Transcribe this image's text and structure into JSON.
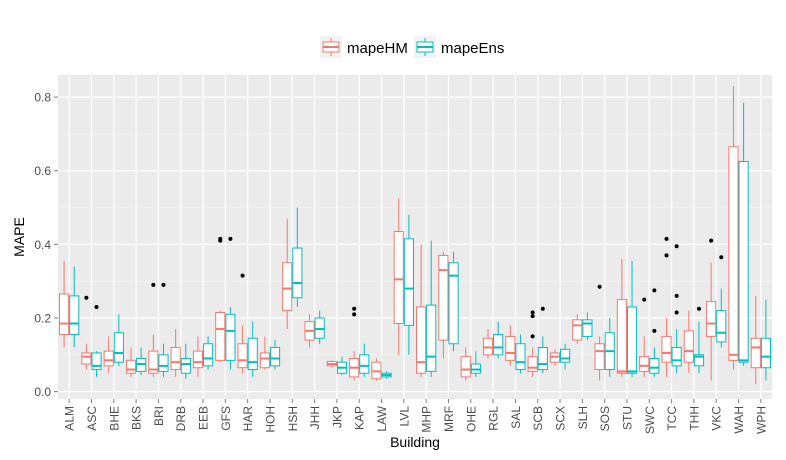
{
  "chart_data": {
    "type": "boxplot",
    "xlabel": "Building",
    "ylabel": "MAPE",
    "ylim": [
      -0.02,
      0.86
    ],
    "yticks": [
      0.0,
      0.2,
      0.4,
      0.6,
      0.8
    ],
    "ytick_labels": [
      "0.0",
      "0.2",
      "0.4",
      "0.6",
      "0.8"
    ],
    "grid": true,
    "legend_position": "top-center",
    "categories": [
      "ALM",
      "ASC",
      "BHE",
      "BKS",
      "BRI",
      "DRB",
      "EEB",
      "GFS",
      "HAR",
      "HOH",
      "HSH",
      "JHH",
      "JKP",
      "KAP",
      "LAW",
      "LVL",
      "MHP",
      "MRF",
      "OHE",
      "RGL",
      "SAL",
      "SCB",
      "SCX",
      "SLH",
      "SOS",
      "STU",
      "SWC",
      "TCC",
      "THH",
      "VKC",
      "WAH",
      "WPH"
    ],
    "series": [
      {
        "name": "mapeHM",
        "color": "#F8766D",
        "boxes": [
          {
            "lw": 0.12,
            "q1": 0.155,
            "med": 0.185,
            "q3": 0.265,
            "uw": 0.355,
            "out": []
          },
          {
            "lw": 0.06,
            "q1": 0.075,
            "med": 0.095,
            "q3": 0.105,
            "uw": 0.13,
            "out": [
              0.255
            ]
          },
          {
            "lw": 0.05,
            "q1": 0.07,
            "med": 0.085,
            "q3": 0.11,
            "uw": 0.15,
            "out": []
          },
          {
            "lw": 0.04,
            "q1": 0.05,
            "med": 0.06,
            "q3": 0.085,
            "uw": 0.12,
            "out": []
          },
          {
            "lw": 0.04,
            "q1": 0.05,
            "med": 0.06,
            "q3": 0.11,
            "uw": 0.155,
            "out": [
              0.29
            ]
          },
          {
            "lw": 0.04,
            "q1": 0.06,
            "med": 0.08,
            "q3": 0.12,
            "uw": 0.17,
            "out": []
          },
          {
            "lw": 0.04,
            "q1": 0.065,
            "med": 0.08,
            "q3": 0.11,
            "uw": 0.15,
            "out": []
          },
          {
            "lw": 0.08,
            "q1": 0.085,
            "med": 0.17,
            "q3": 0.215,
            "uw": 0.22,
            "out": [
              0.41,
              0.415
            ]
          },
          {
            "lw": 0.05,
            "q1": 0.065,
            "med": 0.085,
            "q3": 0.13,
            "uw": 0.18,
            "out": [
              0.315
            ]
          },
          {
            "lw": 0.06,
            "q1": 0.065,
            "med": 0.09,
            "q3": 0.105,
            "uw": 0.15,
            "out": []
          },
          {
            "lw": 0.17,
            "q1": 0.22,
            "med": 0.28,
            "q3": 0.35,
            "uw": 0.47,
            "out": []
          },
          {
            "lw": 0.12,
            "q1": 0.14,
            "med": 0.165,
            "q3": 0.19,
            "uw": 0.21,
            "out": []
          },
          {
            "lw": 0.065,
            "q1": 0.07,
            "med": 0.075,
            "q3": 0.082,
            "uw": 0.085,
            "out": []
          },
          {
            "lw": 0.03,
            "q1": 0.04,
            "med": 0.065,
            "q3": 0.09,
            "uw": 0.11,
            "out": [
              0.21,
              0.225
            ]
          },
          {
            "lw": 0.03,
            "q1": 0.035,
            "med": 0.055,
            "q3": 0.08,
            "uw": 0.09,
            "out": []
          },
          {
            "lw": 0.1,
            "q1": 0.185,
            "med": 0.305,
            "q3": 0.435,
            "uw": 0.525,
            "out": []
          },
          {
            "lw": 0.04,
            "q1": 0.05,
            "med": 0.08,
            "q3": 0.23,
            "uw": 0.4,
            "out": []
          },
          {
            "lw": 0.09,
            "q1": 0.14,
            "med": 0.33,
            "q3": 0.37,
            "uw": 0.38,
            "out": []
          },
          {
            "lw": 0.03,
            "q1": 0.04,
            "med": 0.06,
            "q3": 0.095,
            "uw": 0.12,
            "out": []
          },
          {
            "lw": 0.09,
            "q1": 0.1,
            "med": 0.12,
            "q3": 0.145,
            "uw": 0.17,
            "out": []
          },
          {
            "lw": 0.07,
            "q1": 0.085,
            "med": 0.105,
            "q3": 0.15,
            "uw": 0.18,
            "out": []
          },
          {
            "lw": 0.04,
            "q1": 0.055,
            "med": 0.065,
            "q3": 0.095,
            "uw": 0.12,
            "out": [
              0.15,
              0.205,
              0.215
            ]
          },
          {
            "lw": 0.07,
            "q1": 0.08,
            "med": 0.095,
            "q3": 0.105,
            "uw": 0.115,
            "out": []
          },
          {
            "lw": 0.13,
            "q1": 0.14,
            "med": 0.18,
            "q3": 0.195,
            "uw": 0.21,
            "out": []
          },
          {
            "lw": 0.03,
            "q1": 0.06,
            "med": 0.11,
            "q3": 0.13,
            "uw": 0.15,
            "out": [
              0.285
            ]
          },
          {
            "lw": 0.04,
            "q1": 0.05,
            "med": 0.055,
            "q3": 0.25,
            "uw": 0.36,
            "out": []
          },
          {
            "lw": 0.04,
            "q1": 0.055,
            "med": 0.07,
            "q3": 0.095,
            "uw": 0.15,
            "out": [
              0.25
            ]
          },
          {
            "lw": 0.04,
            "q1": 0.08,
            "med": 0.105,
            "q3": 0.15,
            "uw": 0.2,
            "out": [
              0.37,
              0.415
            ]
          },
          {
            "lw": 0.05,
            "q1": 0.08,
            "med": 0.11,
            "q3": 0.165,
            "uw": 0.22,
            "out": []
          },
          {
            "lw": 0.03,
            "q1": 0.15,
            "med": 0.185,
            "q3": 0.245,
            "uw": 0.35,
            "out": [
              0.41
            ]
          },
          {
            "lw": 0.06,
            "q1": 0.085,
            "med": 0.1,
            "q3": 0.665,
            "uw": 0.83,
            "out": []
          },
          {
            "lw": 0.02,
            "q1": 0.065,
            "med": 0.12,
            "q3": 0.145,
            "uw": 0.26,
            "out": []
          }
        ]
      },
      {
        "name": "mapeEns",
        "color": "#00BFC4",
        "boxes": [
          {
            "lw": 0.12,
            "q1": 0.155,
            "med": 0.185,
            "q3": 0.26,
            "uw": 0.34,
            "out": []
          },
          {
            "lw": 0.04,
            "q1": 0.06,
            "med": 0.07,
            "q3": 0.105,
            "uw": 0.11,
            "out": [
              0.23
            ]
          },
          {
            "lw": 0.07,
            "q1": 0.08,
            "med": 0.105,
            "q3": 0.16,
            "uw": 0.21,
            "out": []
          },
          {
            "lw": 0.045,
            "q1": 0.055,
            "med": 0.075,
            "q3": 0.09,
            "uw": 0.12,
            "out": []
          },
          {
            "lw": 0.04,
            "q1": 0.055,
            "med": 0.07,
            "q3": 0.1,
            "uw": 0.13,
            "out": [
              0.29
            ]
          },
          {
            "lw": 0.035,
            "q1": 0.05,
            "med": 0.075,
            "q3": 0.09,
            "uw": 0.13,
            "out": []
          },
          {
            "lw": 0.06,
            "q1": 0.07,
            "med": 0.09,
            "q3": 0.13,
            "uw": 0.15,
            "out": []
          },
          {
            "lw": 0.06,
            "q1": 0.085,
            "med": 0.165,
            "q3": 0.21,
            "uw": 0.23,
            "out": [
              0.415
            ]
          },
          {
            "lw": 0.04,
            "q1": 0.06,
            "med": 0.08,
            "q3": 0.145,
            "uw": 0.19,
            "out": []
          },
          {
            "lw": 0.06,
            "q1": 0.07,
            "med": 0.09,
            "q3": 0.12,
            "uw": 0.14,
            "out": []
          },
          {
            "lw": 0.23,
            "q1": 0.255,
            "med": 0.295,
            "q3": 0.39,
            "uw": 0.5,
            "out": []
          },
          {
            "lw": 0.13,
            "q1": 0.145,
            "med": 0.17,
            "q3": 0.2,
            "uw": 0.22,
            "out": []
          },
          {
            "lw": 0.045,
            "q1": 0.05,
            "med": 0.065,
            "q3": 0.08,
            "uw": 0.095,
            "out": []
          },
          {
            "lw": 0.04,
            "q1": 0.05,
            "med": 0.07,
            "q3": 0.1,
            "uw": 0.13,
            "out": []
          },
          {
            "lw": 0.035,
            "q1": 0.04,
            "med": 0.045,
            "q3": 0.05,
            "uw": 0.055,
            "out": []
          },
          {
            "lw": 0.1,
            "q1": 0.18,
            "med": 0.28,
            "q3": 0.415,
            "uw": 0.48,
            "out": []
          },
          {
            "lw": 0.04,
            "q1": 0.055,
            "med": 0.095,
            "q3": 0.235,
            "uw": 0.41,
            "out": []
          },
          {
            "lw": 0.11,
            "q1": 0.13,
            "med": 0.315,
            "q3": 0.35,
            "uw": 0.38,
            "out": []
          },
          {
            "lw": 0.04,
            "q1": 0.05,
            "med": 0.06,
            "q3": 0.075,
            "uw": 0.11,
            "out": []
          },
          {
            "lw": 0.09,
            "q1": 0.1,
            "med": 0.12,
            "q3": 0.155,
            "uw": 0.19,
            "out": []
          },
          {
            "lw": 0.05,
            "q1": 0.06,
            "med": 0.08,
            "q3": 0.13,
            "uw": 0.155,
            "out": []
          },
          {
            "lw": 0.05,
            "q1": 0.06,
            "med": 0.075,
            "q3": 0.12,
            "uw": 0.15,
            "out": [
              0.225
            ]
          },
          {
            "lw": 0.06,
            "q1": 0.08,
            "med": 0.09,
            "q3": 0.115,
            "uw": 0.13,
            "out": []
          },
          {
            "lw": 0.14,
            "q1": 0.15,
            "med": 0.185,
            "q3": 0.195,
            "uw": 0.215,
            "out": []
          },
          {
            "lw": 0.04,
            "q1": 0.06,
            "med": 0.11,
            "q3": 0.16,
            "uw": 0.2,
            "out": []
          },
          {
            "lw": 0.04,
            "q1": 0.05,
            "med": 0.055,
            "q3": 0.23,
            "uw": 0.355,
            "out": []
          },
          {
            "lw": 0.04,
            "q1": 0.05,
            "med": 0.065,
            "q3": 0.09,
            "uw": 0.12,
            "out": [
              0.165,
              0.275
            ]
          },
          {
            "lw": 0.05,
            "q1": 0.07,
            "med": 0.085,
            "q3": 0.12,
            "uw": 0.17,
            "out": [
              0.215,
              0.26,
              0.395
            ]
          },
          {
            "lw": 0.05,
            "q1": 0.07,
            "med": 0.095,
            "q3": 0.1,
            "uw": 0.19,
            "out": [
              0.225
            ]
          },
          {
            "lw": 0.12,
            "q1": 0.135,
            "med": 0.16,
            "q3": 0.22,
            "uw": 0.28,
            "out": [
              0.365
            ]
          },
          {
            "lw": 0.07,
            "q1": 0.08,
            "med": 0.085,
            "q3": 0.625,
            "uw": 0.785,
            "out": []
          },
          {
            "lw": 0.03,
            "q1": 0.065,
            "med": 0.095,
            "q3": 0.145,
            "uw": 0.25,
            "out": []
          }
        ]
      }
    ]
  }
}
